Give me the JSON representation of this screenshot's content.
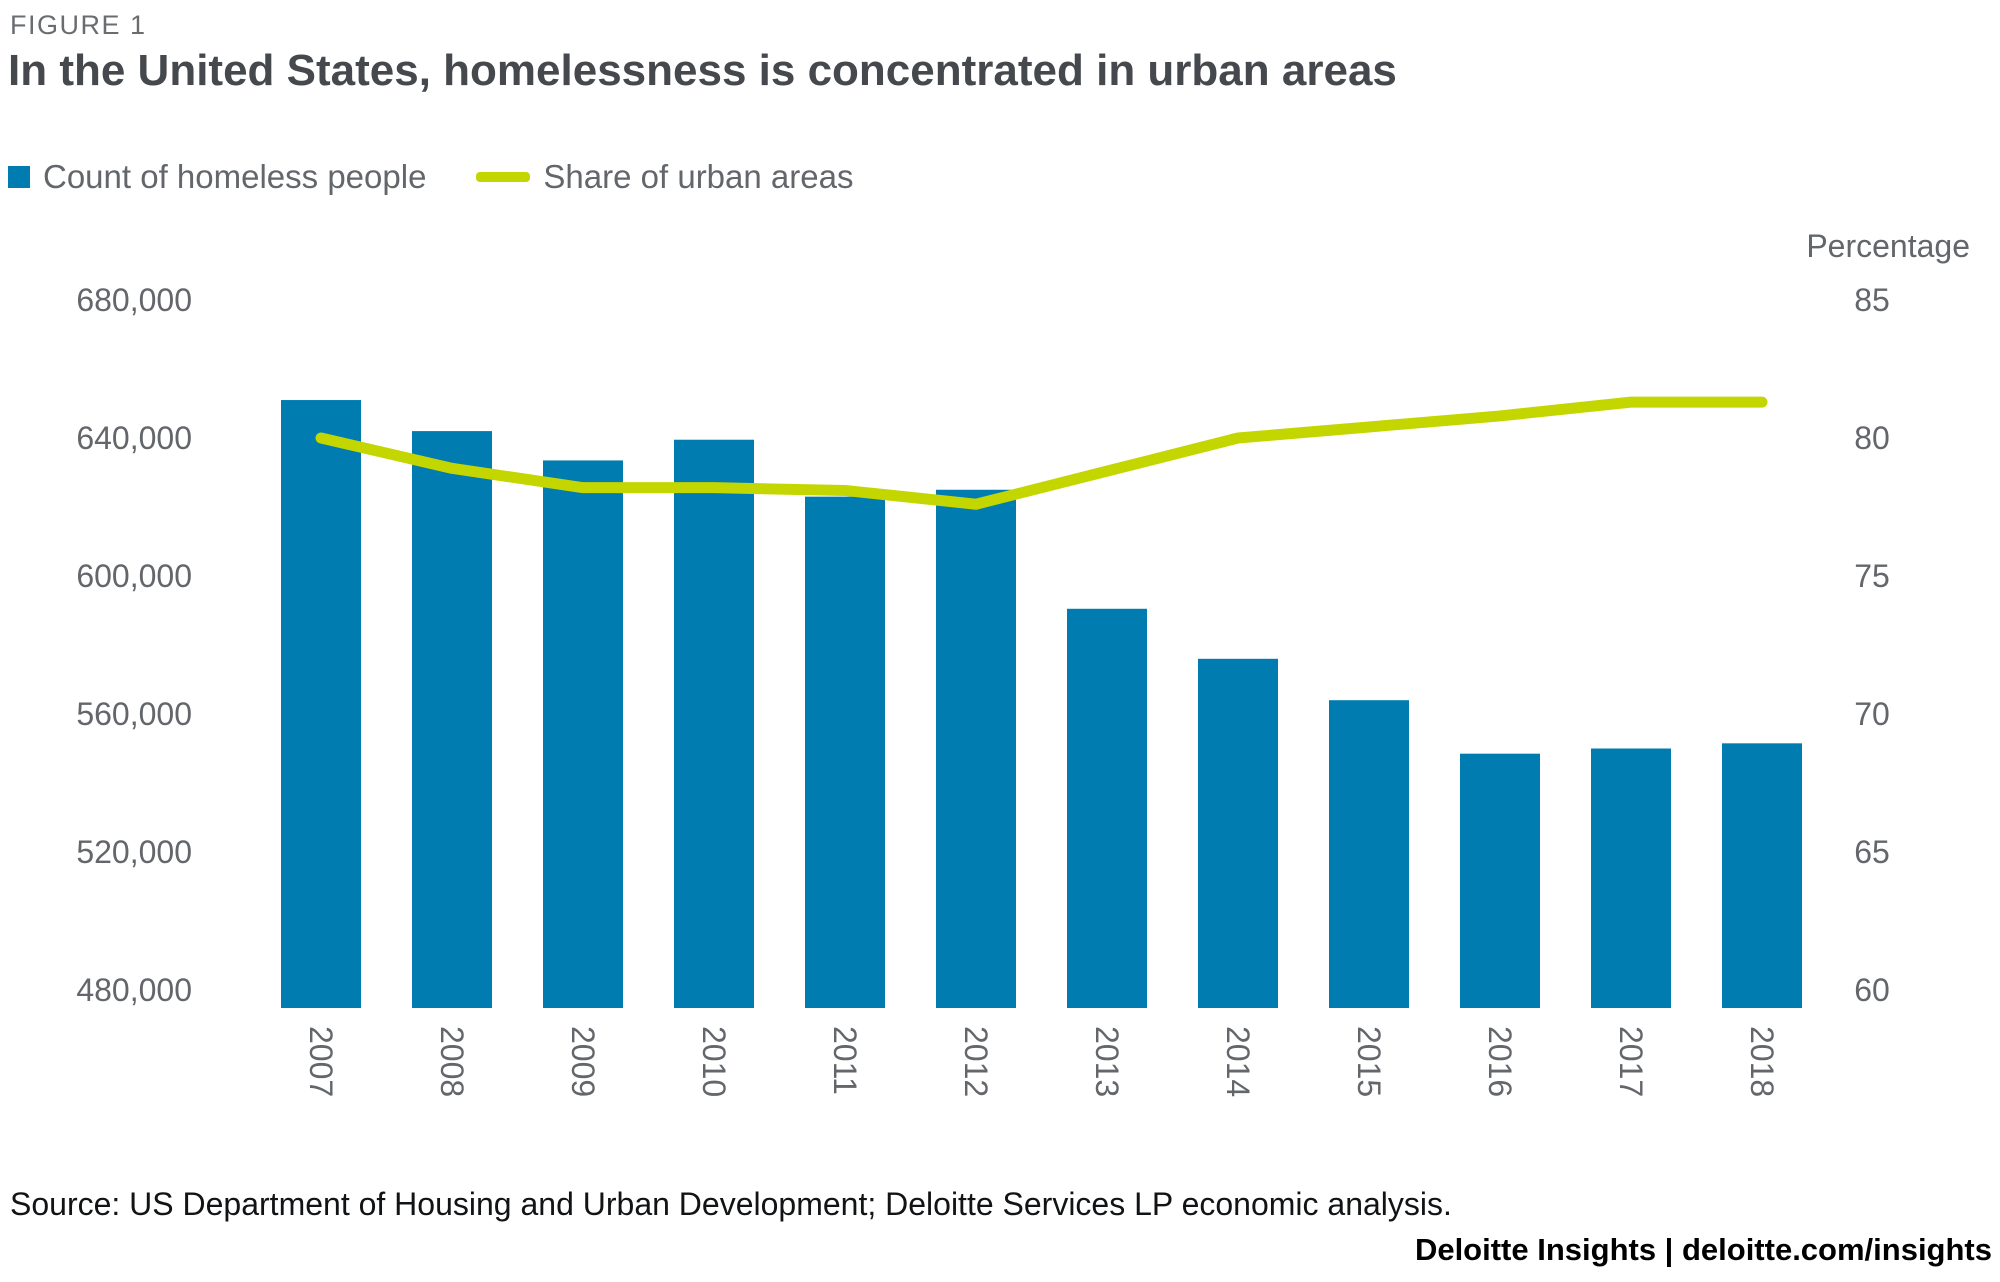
{
  "figure_label": "FIGURE 1",
  "title": "In the United States, homelessness is concentrated in urban areas",
  "legend": [
    {
      "label": "Count of homeless people",
      "marker": "bar-swatch"
    },
    {
      "label": "Share of urban areas",
      "marker": "line-swatch"
    }
  ],
  "right_axis_title": "Percentage",
  "source": "Source: US Department of Housing and Urban Development; Deloitte Services LP economic analysis.",
  "footer": "Deloitte Insights | deloitte.com/insights",
  "colors": {
    "bar": "#007cb0",
    "line": "#c4d600",
    "axis_text": "#63666a",
    "title_text": "#45494d",
    "figure_label_text": "#6a6d70",
    "source_text": "#111315",
    "footer_text": "#000000"
  },
  "chart_data": {
    "type": "bar+line combo",
    "title": "In the United States, homelessness is concentrated in urban areas",
    "categories": [
      "2007",
      "2008",
      "2009",
      "2010",
      "2011",
      "2012",
      "2013",
      "2014",
      "2015",
      "2016",
      "2017",
      "2018"
    ],
    "series": [
      {
        "name": "Count of homeless people",
        "type": "bar",
        "axis": "left",
        "values": [
          651000,
          642000,
          633500,
          639500,
          623000,
          625000,
          590500,
          576000,
          564000,
          548500,
          550000,
          551500
        ]
      },
      {
        "name": "Share of urban areas",
        "type": "line",
        "axis": "right",
        "values": [
          80.0,
          78.9,
          78.2,
          78.2,
          78.1,
          77.6,
          78.8,
          80.0,
          80.4,
          80.8,
          81.3,
          81.3
        ]
      }
    ],
    "left_axis": {
      "label": "",
      "ticks": [
        680000,
        640000,
        600000,
        560000,
        520000,
        480000
      ],
      "baseline_value": 474000
    },
    "right_axis": {
      "label": "Percentage",
      "ticks": [
        85,
        80,
        75,
        70,
        65,
        60
      ]
    },
    "grid": "off",
    "legend_position": "top-left"
  }
}
